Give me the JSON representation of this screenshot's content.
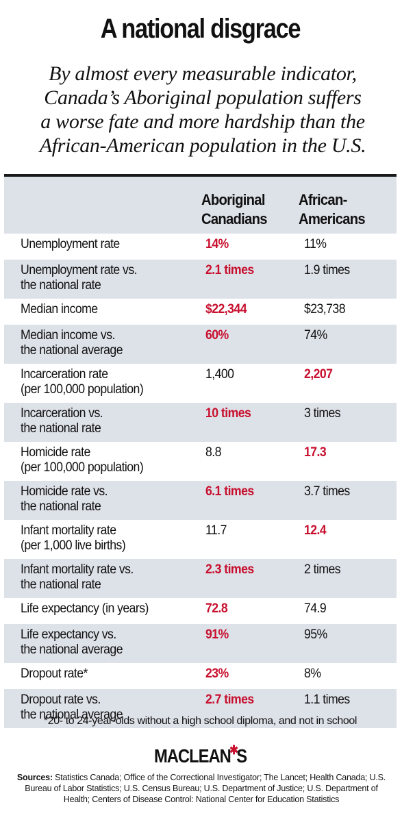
{
  "title": "A national disgrace",
  "subtitle_lines": [
    "By almost every measurable indicator,",
    "Canada’s Aboriginal population suffers",
    "a worse fate and more hardship than the",
    "African-American population in the U.S."
  ],
  "columns": {
    "c1_line1": "Aboriginal",
    "c1_line2": "Canadians",
    "c2_line1": "African-",
    "c2_line2": "Americans"
  },
  "rows": [
    {
      "l1": "Unemployment rate",
      "l2": "",
      "a": "14%",
      "b": "11%",
      "worse": "a"
    },
    {
      "l1": "Unemployment rate vs.",
      "l2": "the national rate",
      "a": "2.1 times",
      "b": "1.9 times",
      "worse": "a"
    },
    {
      "l1": "Median income",
      "l2": "",
      "a": "$22,344",
      "b": "$23,738",
      "worse": "a"
    },
    {
      "l1": "Median income vs.",
      "l2": "the national average",
      "a": "60%",
      "b": "74%",
      "worse": "a"
    },
    {
      "l1": "Incarceration rate",
      "l2": "(per 100,000 population)",
      "a": "1,400",
      "b": "2,207",
      "worse": "b"
    },
    {
      "l1": "Incarceration vs.",
      "l2": "the national rate",
      "a": "10 times",
      "b": "3 times",
      "worse": "a"
    },
    {
      "l1": "Homicide rate",
      "l2": "(per 100,000 population)",
      "a": "8.8",
      "b": "17.3",
      "worse": "b"
    },
    {
      "l1": "Homicide rate vs.",
      "l2": "the national rate",
      "a": "6.1 times",
      "b": "3.7 times",
      "worse": "a"
    },
    {
      "l1": "Infant mortality rate",
      "l2": "(per 1,000 live births)",
      "a": "11.7",
      "b": "12.4",
      "worse": "b"
    },
    {
      "l1": "Infant mortality rate vs.",
      "l2": "the national rate",
      "a": "2.3 times",
      "b": "2 times",
      "worse": "a"
    },
    {
      "l1": "Life expectancy (in years)",
      "l2": "",
      "a": "72.8",
      "b": "74.9",
      "worse": "a"
    },
    {
      "l1": "Life expectancy vs.",
      "l2": "the national average",
      "a": "91%",
      "b": "95%",
      "worse": "a"
    },
    {
      "l1": "Dropout rate*",
      "l2": "",
      "a": "23%",
      "b": "8%",
      "worse": "a"
    },
    {
      "l1": "Dropout rate vs.",
      "l2": "the national average",
      "a": "2.7 times",
      "b": "1.1 times",
      "worse": "a"
    }
  ],
  "footnote": "*20- to 24-year-olds without a high school diploma, and not in school",
  "logo": {
    "left": "MACLEAN",
    "right": "S",
    "leaf_icon": "maple-leaf-icon"
  },
  "sources": {
    "label": "Sources:",
    "text": " Statistics Canada; Office of the Correctional Investigator; The Lancet; Health Canada; U.S. Bureau of Labor Statistics; U.S. Census Bureau; U.S. Department of Justice; U.S. Department of Health; Centers of Disease Control: National Center for Education Statistics"
  },
  "colors": {
    "highlight": "#c8102e",
    "shade": "#dde1e8"
  }
}
